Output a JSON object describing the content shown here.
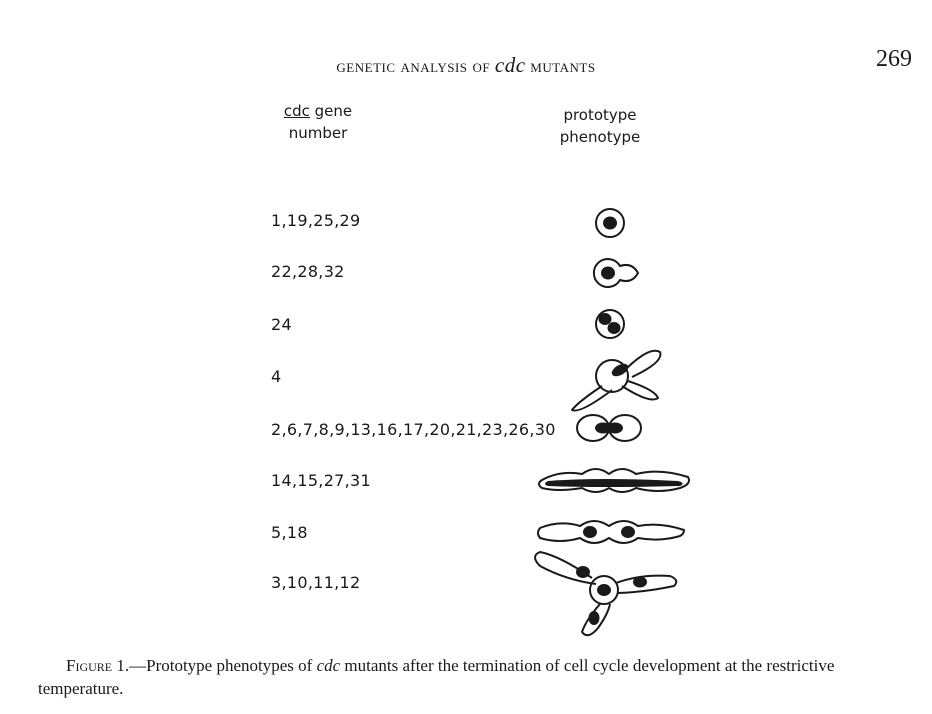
{
  "header": {
    "title_part1": "Genetic Analysis of",
    "title_italic": "cdc",
    "title_part2": "Mutants",
    "page_number": "269"
  },
  "figure": {
    "column_gene_line1_underlined": "cdc",
    "column_gene_line1_rest": " gene",
    "column_gene_line2": "number",
    "column_phenotype_line1": "prototype",
    "column_phenotype_line2": "phenotype",
    "rows": [
      {
        "genes": "1,19,25,29",
        "phenotype_icon": "unbudded-cell-icon"
      },
      {
        "genes": "22,28,32",
        "phenotype_icon": "small-bud-cell-icon"
      },
      {
        "genes": "24",
        "phenotype_icon": "two-nuclei-cell-icon"
      },
      {
        "genes": "4",
        "phenotype_icon": "multibud-cell-icon"
      },
      {
        "genes": "2,6,7,8,9,13,16,17,20,21,23,26,30",
        "phenotype_icon": "dumbbell-cell-icon"
      },
      {
        "genes": "14,15,27,31",
        "phenotype_icon": "elongated-chain-icon"
      },
      {
        "genes": "5,18",
        "phenotype_icon": "elongated-two-nuclei-icon"
      },
      {
        "genes": "3,10,11,12",
        "phenotype_icon": "branched-cell-icon"
      }
    ]
  },
  "caption": {
    "label": "Figure 1.",
    "text_before": "—Prototype phenotypes of ",
    "italic": "cdc",
    "text_after": " mutants after the termination of cell cycle development at the restrictive temperature."
  }
}
